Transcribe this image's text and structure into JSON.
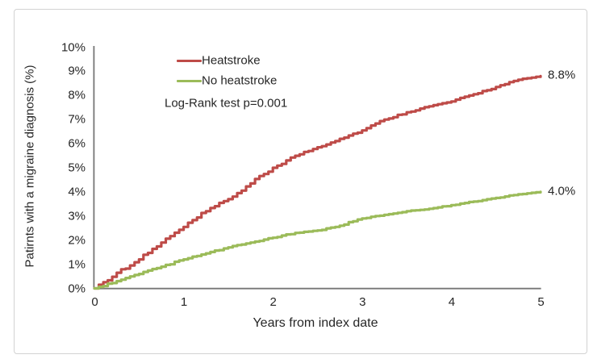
{
  "chart_data": {
    "type": "line",
    "subtype": "cumulative-incidence-step-curves",
    "title": "",
    "xlabel": "Years from index date",
    "ylabel": "Patirnts with a migraine diagnosis (%)",
    "xlim": [
      0,
      5
    ],
    "ylim": [
      0,
      10
    ],
    "x_ticks": [
      "0",
      "1",
      "2",
      "3",
      "4",
      "5"
    ],
    "y_ticks": [
      "0%",
      "1%",
      "2%",
      "3%",
      "4%",
      "5%",
      "6%",
      "7%",
      "8%",
      "9%",
      "10%"
    ],
    "grid": false,
    "legend_position": "inside-top-left",
    "annotation": "Log-Rank test p=0.001",
    "x": [
      0,
      0.25,
      0.5,
      0.75,
      1,
      1.25,
      1.5,
      1.75,
      2,
      2.25,
      2.5,
      2.75,
      3,
      3.25,
      3.5,
      3.75,
      4,
      4.25,
      4.5,
      4.75,
      5
    ],
    "series": [
      {
        "name": "Heatstroke",
        "color": "#BE4B48",
        "end_label": "8.8%",
        "values": [
          0,
          0.65,
          1.2,
          1.9,
          2.55,
          3.2,
          3.7,
          4.35,
          5.0,
          5.5,
          5.85,
          6.2,
          6.55,
          7.0,
          7.3,
          7.55,
          7.75,
          8.05,
          8.35,
          8.65,
          8.8
        ]
      },
      {
        "name": "No heatstroke",
        "color": "#9BBB59",
        "end_label": "4.0%",
        "values": [
          0,
          0.3,
          0.6,
          0.9,
          1.2,
          1.45,
          1.7,
          1.9,
          2.1,
          2.3,
          2.4,
          2.6,
          2.9,
          3.05,
          3.2,
          3.3,
          3.45,
          3.6,
          3.75,
          3.9,
          4.0
        ]
      }
    ],
    "axis_color": "#767676",
    "text_color": "#262626"
  }
}
